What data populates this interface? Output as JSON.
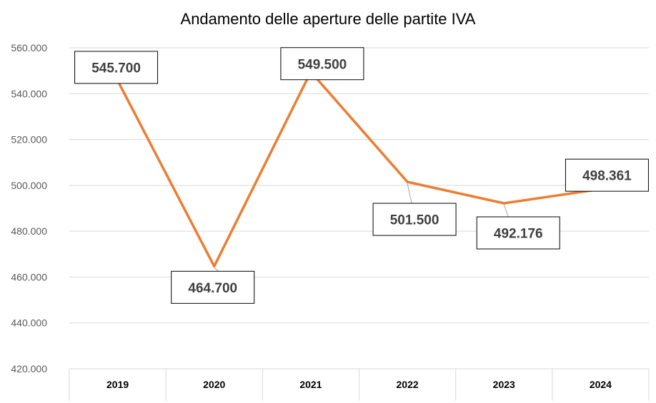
{
  "chart_data": {
    "type": "line",
    "title": "Andamento delle aperture delle partite IVA",
    "xlabel": "",
    "ylabel": "",
    "categories": [
      "2019",
      "2020",
      "2021",
      "2022",
      "2023",
      "2024"
    ],
    "series": [
      {
        "values": [
          545700,
          464700,
          549500,
          501500,
          492176,
          498361
        ],
        "color": "#ED7D31"
      }
    ],
    "data_labels": [
      "545.700",
      "464.700",
      "549.500",
      "501.500",
      "492.176",
      "498.361"
    ],
    "ylim": [
      420000,
      560000
    ],
    "yticks": [
      420000,
      440000,
      460000,
      480000,
      500000,
      520000,
      540000,
      560000
    ],
    "ytick_labels": [
      "420.000",
      "440.000",
      "460.000",
      "480.000",
      "500.000",
      "520.000",
      "540.000",
      "560.000"
    ],
    "grid": true,
    "legend": "none"
  }
}
